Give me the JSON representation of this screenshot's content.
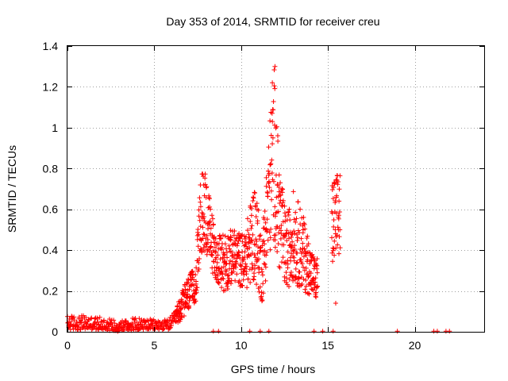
{
  "chart_data": {
    "type": "scatter",
    "title": "Day 353 of 2014, SRMTID for receiver creu",
    "xlabel": "GPS time / hours",
    "ylabel": "SRMTID / TECUs",
    "xlim": [
      0,
      24
    ],
    "ylim": [
      0,
      1.4
    ],
    "x_ticks": [
      "0",
      "5",
      "10",
      "15",
      "20"
    ],
    "y_ticks": [
      "0",
      "0.2",
      "0.4",
      "0.6",
      "0.8",
      "1",
      "1.2",
      "1.4"
    ],
    "grid": true,
    "marker": "+",
    "marker_color": "#ff0000",
    "envelope": [
      {
        "x": 0.0,
        "lo": 0.01,
        "hi": 0.08
      },
      {
        "x": 1.0,
        "lo": 0.01,
        "hi": 0.08
      },
      {
        "x": 2.0,
        "lo": 0.01,
        "hi": 0.07
      },
      {
        "x": 3.0,
        "lo": 0.0,
        "hi": 0.06
      },
      {
        "x": 4.0,
        "lo": 0.01,
        "hi": 0.07
      },
      {
        "x": 5.0,
        "lo": 0.01,
        "hi": 0.06
      },
      {
        "x": 5.8,
        "lo": 0.01,
        "hi": 0.06
      },
      {
        "x": 6.2,
        "lo": 0.03,
        "hi": 0.1
      },
      {
        "x": 6.6,
        "lo": 0.06,
        "hi": 0.2
      },
      {
        "x": 7.0,
        "lo": 0.1,
        "hi": 0.28
      },
      {
        "x": 7.4,
        "lo": 0.15,
        "hi": 0.32
      },
      {
        "x": 7.6,
        "lo": 0.3,
        "hi": 0.7
      },
      {
        "x": 7.9,
        "lo": 0.4,
        "hi": 0.85
      },
      {
        "x": 8.2,
        "lo": 0.3,
        "hi": 0.65
      },
      {
        "x": 8.6,
        "lo": 0.25,
        "hi": 0.45
      },
      {
        "x": 9.0,
        "lo": 0.18,
        "hi": 0.5
      },
      {
        "x": 9.6,
        "lo": 0.25,
        "hi": 0.5
      },
      {
        "x": 10.2,
        "lo": 0.2,
        "hi": 0.48
      },
      {
        "x": 10.8,
        "lo": 0.25,
        "hi": 0.75
      },
      {
        "x": 11.2,
        "lo": 0.14,
        "hi": 0.45
      },
      {
        "x": 11.6,
        "lo": 0.35,
        "hi": 1.0
      },
      {
        "x": 11.9,
        "lo": 0.45,
        "hi": 1.3
      },
      {
        "x": 12.2,
        "lo": 0.3,
        "hi": 0.85
      },
      {
        "x": 12.6,
        "lo": 0.2,
        "hi": 0.55
      },
      {
        "x": 13.0,
        "lo": 0.25,
        "hi": 0.7
      },
      {
        "x": 13.5,
        "lo": 0.2,
        "hi": 0.6
      },
      {
        "x": 14.0,
        "lo": 0.18,
        "hi": 0.42
      },
      {
        "x": 14.3,
        "lo": 0.15,
        "hi": 0.35
      },
      {
        "x": 15.3,
        "lo": 0.3,
        "hi": 0.75
      },
      {
        "x": 15.7,
        "lo": 0.35,
        "hi": 0.8
      }
    ],
    "zero_points_x": [
      8.4,
      8.7,
      10.5,
      11.1,
      11.6,
      14.2,
      14.7,
      15.3,
      19.0,
      21.1,
      21.3,
      21.8,
      22.0
    ],
    "isolated_points": [
      {
        "x": 15.45,
        "y": 0.14
      },
      {
        "x": 11.95,
        "y": 1.3
      },
      {
        "x": 11.8,
        "y": 1.22
      }
    ]
  }
}
